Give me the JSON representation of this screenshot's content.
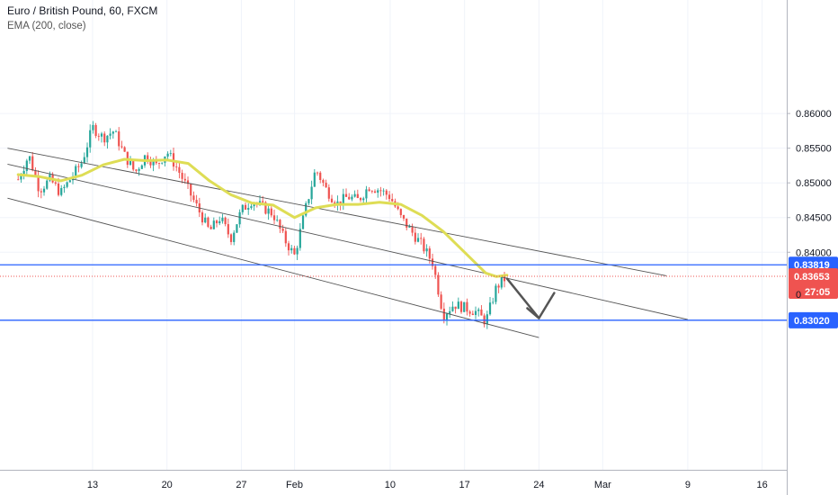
{
  "header": {
    "title": "Euro / British Pound, 60, FXCM",
    "indicator": "EMA (200, close)"
  },
  "colors": {
    "candle_up": "#26a69a",
    "candle_down": "#ef5350",
    "ema": "#dedd55",
    "level_line": "#2962ff",
    "channel_line": "#555555",
    "current_price": "#ef5350",
    "arrow": "#555555"
  },
  "chart_data": {
    "type": "line",
    "title": "Euro / British Pound, 60, FXCM",
    "xlabel": "",
    "ylabel": "",
    "x_ticks": [
      "13",
      "20",
      "27",
      "Feb",
      "10",
      "17",
      "24",
      "Mar",
      "9",
      "16"
    ],
    "y_ticks": [
      "0.86000",
      "0.85500",
      "0.85000",
      "0.84500",
      "0.84000"
    ],
    "ylim": [
      0.8265,
      0.8641
    ],
    "grid": true,
    "series": [
      {
        "name": "EMA (200, close)",
        "points": [
          [
            "Jan 6",
            0.8512
          ],
          [
            "Jan 8",
            0.8509
          ],
          [
            "Jan 10",
            0.8503
          ],
          [
            "Jan 12",
            0.8511
          ],
          [
            "Jan 14",
            0.8526
          ],
          [
            "Jan 16",
            0.8534
          ],
          [
            "Jan 18",
            0.8532
          ],
          [
            "Jan 20",
            0.8533
          ],
          [
            "Jan 22",
            0.8528
          ],
          [
            "Jan 24",
            0.8503
          ],
          [
            "Jan 26",
            0.8483
          ],
          [
            "Jan 28",
            0.8471
          ],
          [
            "Jan 30",
            0.8468
          ],
          [
            "Feb 1",
            0.845
          ],
          [
            "Feb 3",
            0.8464
          ],
          [
            "Feb 5",
            0.8469
          ],
          [
            "Feb 7",
            0.8469
          ],
          [
            "Feb 9",
            0.8472
          ],
          [
            "Feb 11",
            0.8469
          ],
          [
            "Feb 13",
            0.8453
          ],
          [
            "Feb 15",
            0.843
          ],
          [
            "Feb 17",
            0.84
          ],
          [
            "Feb 19",
            0.837
          ],
          [
            "Feb 20",
            0.8365
          ],
          [
            "Feb 21",
            0.8367
          ]
        ]
      }
    ],
    "ohlc_points": [
      [
        "Jan 6",
        0.8505
      ],
      [
        "Jan 7",
        0.854
      ],
      [
        "Jan 8",
        0.849
      ],
      [
        "Jan 9",
        0.8505
      ],
      [
        "Jan 10",
        0.8485
      ],
      [
        "Jan 12",
        0.853
      ],
      [
        "Jan 13",
        0.858
      ],
      [
        "Jan 14",
        0.8565
      ],
      [
        "Jan 15",
        0.8575
      ],
      [
        "Jan 16",
        0.854
      ],
      [
        "Jan 17",
        0.8515
      ],
      [
        "Jan 18",
        0.854
      ],
      [
        "Jan 19",
        0.8525
      ],
      [
        "Jan 20",
        0.8545
      ],
      [
        "Jan 21",
        0.852
      ],
      [
        "Jan 22",
        0.849
      ],
      [
        "Jan 23",
        0.846
      ],
      [
        "Jan 24",
        0.843
      ],
      [
        "Jan 25",
        0.845
      ],
      [
        "Jan 26",
        0.842
      ],
      [
        "Jan 27",
        0.846
      ],
      [
        "Jan 28",
        0.8475
      ],
      [
        "Jan 29",
        0.8465
      ],
      [
        "Jan 30",
        0.8455
      ],
      [
        "Jan 31",
        0.842
      ],
      [
        "Feb 1",
        0.8395
      ],
      [
        "Feb 2",
        0.846
      ],
      [
        "Feb 3",
        0.852
      ],
      [
        "Feb 4",
        0.849
      ],
      [
        "Feb 5",
        0.847
      ],
      [
        "Feb 6",
        0.848
      ],
      [
        "Feb 7",
        0.8475
      ],
      [
        "Feb 8",
        0.8495
      ],
      [
        "Feb 9",
        0.849
      ],
      [
        "Feb 10",
        0.848
      ],
      [
        "Feb 11",
        0.845
      ],
      [
        "Feb 12",
        0.843
      ],
      [
        "Feb 13",
        0.841
      ],
      [
        "Feb 14",
        0.8385
      ],
      [
        "Feb 15",
        0.831
      ],
      [
        "Feb 16",
        0.8325
      ],
      [
        "Feb 17",
        0.832
      ],
      [
        "Feb 18",
        0.8315
      ],
      [
        "Feb 19",
        0.83
      ],
      [
        "Feb 20",
        0.835
      ],
      [
        "Feb 21",
        0.8365
      ]
    ],
    "levels": [
      {
        "label": "0.83819",
        "value": 0.83819
      },
      {
        "label": "0.83020",
        "value": 0.8302
      }
    ],
    "current_price": {
      "label": "0.83653",
      "value": 0.83653,
      "countdown": "27:05"
    },
    "channel_lines": [
      {
        "from": [
          "Jan 5",
          0.855
        ],
        "to": [
          "Mar 7",
          0.8366
        ]
      },
      {
        "from": [
          "Jan 5",
          0.8527
        ],
        "to": [
          "Mar 9",
          0.8303
        ]
      },
      {
        "from": [
          "Jan 5",
          0.8478
        ],
        "to": [
          "Feb 24",
          0.8277
        ]
      }
    ],
    "arrow": {
      "from": [
        "Feb 21",
        0.8362
      ],
      "to": [
        "Feb 24",
        0.8305
      ]
    }
  }
}
